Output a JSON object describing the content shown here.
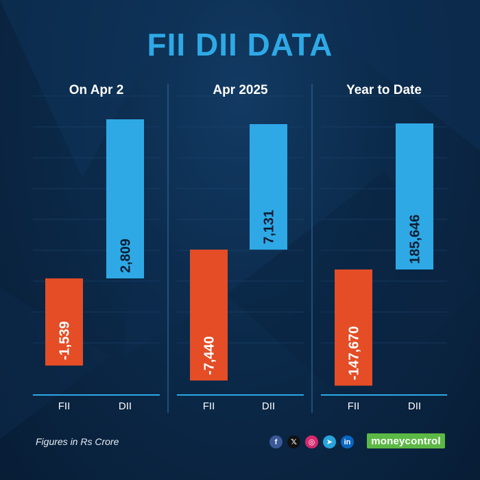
{
  "title": "FII DII DATA",
  "footnote": "Figures in Rs Crore",
  "brand": "moneycontrol",
  "social_icons": [
    {
      "name": "facebook-icon",
      "glyph": "f",
      "color": "#3b5998"
    },
    {
      "name": "x-icon",
      "glyph": "𝕏",
      "color": "#111111"
    },
    {
      "name": "instagram-icon",
      "glyph": "◎",
      "color": "#d6296e"
    },
    {
      "name": "telegram-icon",
      "glyph": "➤",
      "color": "#2aa3dd"
    },
    {
      "name": "linkedin-icon",
      "glyph": "in",
      "color": "#0a66c2"
    }
  ],
  "colors": {
    "fii": "#e44d26",
    "dii": "#2ea9e6",
    "title": "#2ea9e6"
  },
  "chart_data": [
    {
      "type": "bar",
      "title": "On Apr 2",
      "categories": [
        "FII",
        "DII"
      ],
      "values": [
        -1539,
        2809
      ],
      "labels": [
        "-1,539",
        "2,809"
      ]
    },
    {
      "type": "bar",
      "title": "Apr 2025",
      "categories": [
        "FII",
        "DII"
      ],
      "values": [
        -7440,
        7131
      ],
      "labels": [
        "-7,440",
        "7,131"
      ]
    },
    {
      "type": "bar",
      "title": "Year to Date",
      "categories": [
        "FII",
        "DII"
      ],
      "values": [
        -147670,
        185646
      ],
      "labels": [
        "-147,670",
        "185,646"
      ]
    }
  ]
}
